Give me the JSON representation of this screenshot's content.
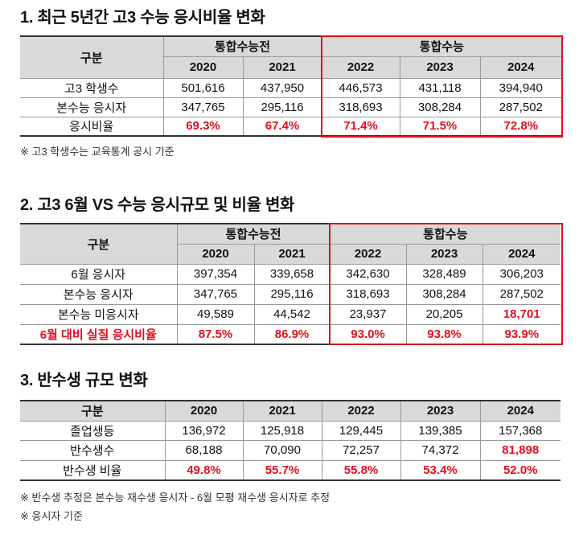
{
  "accent_color": "#e0101e",
  "section1": {
    "title": "1. 최근 5년간 고3 수능 응시비율 변화",
    "header": {
      "label": "구분",
      "group1": "통합수능전",
      "group2": "통합수능",
      "years": [
        "2020",
        "2021",
        "2022",
        "2023",
        "2024"
      ]
    },
    "rows": [
      {
        "label": "고3 학생수",
        "values": [
          "501,616",
          "437,950",
          "446,573",
          "431,118",
          "394,940"
        ]
      },
      {
        "label": "본수능 응시자",
        "values": [
          "347,765",
          "295,116",
          "318,693",
          "308,284",
          "287,502"
        ]
      },
      {
        "label": "응시비율",
        "values": [
          "69.3%",
          "67.4%",
          "71.4%",
          "71.5%",
          "72.8%"
        ]
      }
    ],
    "note": "※ 고3 학생수는 교육통계 공시 기준"
  },
  "section2": {
    "title": "2. 고3 6월 VS 수능 응시규모 및 비율 변화",
    "header": {
      "label": "구분",
      "group1": "통합수능전",
      "group2": "통합수능",
      "years": [
        "2020",
        "2021",
        "2022",
        "2023",
        "2024"
      ]
    },
    "rows": [
      {
        "label": "6월 응시자",
        "values": [
          "397,354",
          "339,658",
          "342,630",
          "328,489",
          "306,203"
        ]
      },
      {
        "label": "본수능 응시자",
        "values": [
          "347,765",
          "295,116",
          "318,693",
          "308,284",
          "287,502"
        ]
      },
      {
        "label": "본수능 미응시자",
        "values": [
          "49,589",
          "44,542",
          "23,937",
          "20,205",
          "18,701"
        ]
      },
      {
        "label": "6월 대비 실질 응시비율",
        "values": [
          "87.5%",
          "86.9%",
          "93.0%",
          "93.8%",
          "93.9%"
        ]
      }
    ]
  },
  "section3": {
    "title": "3. 반수생 규모 변화",
    "header": {
      "label": "구분",
      "years": [
        "2020",
        "2021",
        "2022",
        "2023",
        "2024"
      ]
    },
    "rows": [
      {
        "label": "졸업생등",
        "values": [
          "136,972",
          "125,918",
          "129,445",
          "139,385",
          "157,368"
        ]
      },
      {
        "label": "반수생수",
        "values": [
          "68,188",
          "70,090",
          "72,257",
          "74,372",
          "81,898"
        ]
      },
      {
        "label": "반수생 비율",
        "values": [
          "49.8%",
          "55.7%",
          "55.8%",
          "53.4%",
          "52.0%"
        ]
      }
    ],
    "notes": [
      "※ 반수생 추정은 본수능 재수생 응시자 - 6월 모평 재수생 응시자로 추정",
      "※ 응시자 기준"
    ]
  }
}
